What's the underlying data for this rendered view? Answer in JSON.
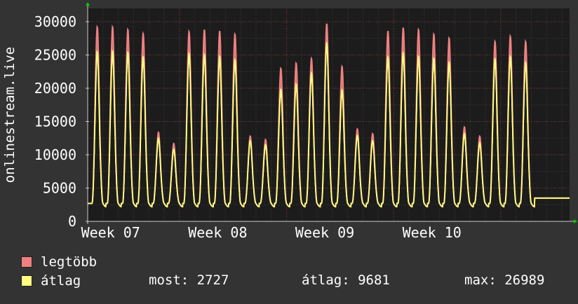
{
  "colors": {
    "background": "#333333",
    "plot_background": "#1c1c1c",
    "grid": "#5a2a2a",
    "axis": "#cccccc",
    "max_series": "#f08080",
    "avg_series": "#ffff80",
    "text": "#ffffff",
    "arrow": "#00cc00"
  },
  "legend": {
    "max_label": "legtöbb",
    "avg_label": "átlag",
    "stats": {
      "now": "most: 2727",
      "avg": "átlag: 9681",
      "max": "max: 26989"
    }
  },
  "chart_data": {
    "type": "area",
    "ylabel": "onlinestream.live",
    "ylim": [
      0,
      32000
    ],
    "y_ticks": [
      0,
      5000,
      10000,
      15000,
      20000,
      25000,
      30000
    ],
    "x_tick_labels": [
      "Week 07",
      "Week 08",
      "Week 09",
      "Week 10"
    ],
    "grid": true,
    "legend_position": "bottom-left",
    "x_unit": "day",
    "x_range_days": [
      0,
      31.5
    ],
    "week_label_day": [
      1.5,
      8.5,
      15.5,
      22.5
    ],
    "week_boundary_day": [
      6,
      13,
      20,
      27
    ],
    "day_start": 0.2,
    "daily_min": 2700,
    "series": [
      {
        "name": "legtöbb",
        "daily_peak": [
          29500,
          29500,
          29100,
          28500,
          13500,
          11800,
          28800,
          29100,
          28900,
          28400,
          12900,
          12400,
          23200,
          24000,
          24700,
          30000,
          23500,
          14000,
          13300,
          28900,
          29400,
          29100,
          28400,
          27800,
          14300,
          12900,
          27300,
          28100,
          27300
        ]
      },
      {
        "name": "átlag",
        "daily_peak": [
          25700,
          25800,
          25600,
          24900,
          12600,
          10900,
          25400,
          25300,
          25000,
          24500,
          12200,
          11600,
          20000,
          20800,
          22500,
          27000,
          19900,
          13000,
          12200,
          24900,
          25500,
          25000,
          24700,
          24100,
          13300,
          11900,
          24600,
          25000,
          24100
        ]
      }
    ]
  }
}
